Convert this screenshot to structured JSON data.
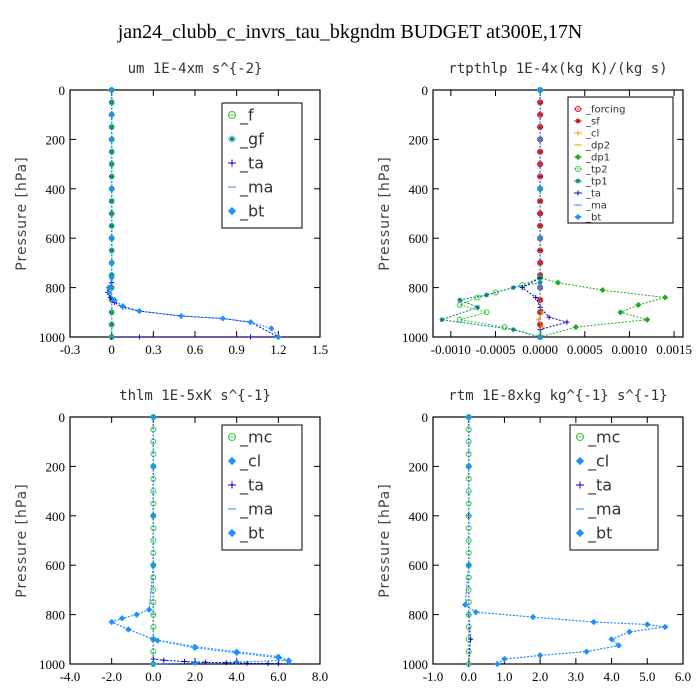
{
  "figure_title": "jan24_clubb_c_invrs_tau_bkgndm  BUDGET at300E,17N",
  "chart_data": [
    {
      "type": "line",
      "title": "um  1E-4xm s^{-2}",
      "ylabel": "Pressure [hPa]",
      "xlim": [
        -0.3,
        1.5
      ],
      "ylim": [
        1000,
        0
      ],
      "xticks": [
        "-0.3",
        "0",
        "0.3",
        "0.6",
        "0.9",
        "1.2",
        "1.5"
      ],
      "yticks": [
        "0",
        "200",
        "400",
        "600",
        "800",
        "1000"
      ],
      "legend_position": "top-right",
      "series": [
        {
          "name": "_f",
          "color": "#33cc33",
          "marker": "circle",
          "x": [
            0,
            0,
            0,
            0,
            0,
            0,
            0,
            0,
            0,
            0,
            0,
            0,
            0,
            0,
            0,
            0,
            0,
            0,
            0,
            0,
            0
          ],
          "y": [
            0,
            50,
            100,
            150,
            200,
            250,
            300,
            350,
            400,
            450,
            500,
            550,
            600,
            650,
            700,
            750,
            800,
            850,
            900,
            950,
            1000
          ]
        },
        {
          "name": "_gf",
          "color": "#008080",
          "marker": "star",
          "x": [
            0,
            0,
            0,
            0,
            0,
            0,
            0,
            0,
            0,
            0,
            0,
            0,
            0,
            0,
            0,
            0,
            0,
            0,
            0,
            0,
            0
          ],
          "y": [
            0,
            50,
            100,
            150,
            200,
            250,
            300,
            350,
            400,
            450,
            500,
            550,
            600,
            650,
            700,
            750,
            800,
            850,
            900,
            950,
            1000
          ]
        },
        {
          "name": "_ta",
          "color": "#0000cc",
          "marker": "plus",
          "x": [
            0,
            0,
            0,
            0,
            0,
            -0.02,
            -0.03,
            -0.01,
            0.02,
            0.08,
            0.2,
            0.5,
            0.8,
            1.0,
            1.2,
            1.0,
            0.2,
            0
          ],
          "y": [
            0,
            200,
            400,
            600,
            780,
            800,
            820,
            840,
            860,
            880,
            895,
            915,
            925,
            940,
            1000,
            1000,
            1000,
            1000
          ]
        },
        {
          "name": "_ma",
          "color": "#5599dd",
          "marker": "dash",
          "x": [
            0,
            0,
            0,
            0
          ],
          "y": [
            0,
            400,
            800,
            1000
          ]
        },
        {
          "name": "_bt",
          "color": "#1e90ff",
          "marker": "diamond",
          "x": [
            0,
            0,
            0,
            0,
            0,
            0,
            0,
            -0.02,
            -0.02,
            0.02,
            0.08,
            0.2,
            0.5,
            0.8,
            1.0,
            1.15,
            1.2
          ],
          "y": [
            0,
            100,
            200,
            400,
            600,
            700,
            760,
            800,
            820,
            850,
            875,
            895,
            915,
            925,
            940,
            965,
            1000
          ]
        }
      ]
    },
    {
      "type": "line",
      "title": "rtpthlp  1E-4x(kg K)/(kg s)",
      "ylabel": "Pressure [hPa]",
      "xlim": [
        -0.0012,
        0.0016
      ],
      "ylim": [
        1000,
        0
      ],
      "xticks": [
        "-0.0010",
        "-0.0005",
        "0.0000",
        "0.0005",
        "0.0010",
        "0.0015"
      ],
      "xtick_values": [
        -0.001,
        -0.0005,
        0,
        0.0005,
        0.001,
        0.0015
      ],
      "yticks": [
        "0",
        "200",
        "400",
        "600",
        "800",
        "1000"
      ],
      "legend_position": "top-right",
      "series": [
        {
          "name": "_forcing",
          "color": "#ff0000",
          "marker": "circle",
          "x": [
            0,
            0,
            0,
            0,
            0,
            0,
            0,
            0,
            0,
            0,
            0,
            0,
            0,
            0,
            0,
            0,
            0,
            0,
            0,
            0,
            0
          ],
          "y": [
            0,
            50,
            100,
            150,
            200,
            250,
            300,
            350,
            400,
            450,
            500,
            550,
            600,
            650,
            700,
            750,
            800,
            850,
            900,
            950,
            1000
          ]
        },
        {
          "name": "_sf",
          "color": "#cc0000",
          "marker": "star",
          "x": [
            0,
            0,
            0,
            0,
            0,
            0,
            0,
            0,
            0,
            0,
            0,
            0,
            0,
            0,
            0,
            0,
            0,
            0,
            0,
            0,
            0
          ],
          "y": [
            0,
            50,
            100,
            150,
            200,
            250,
            300,
            350,
            400,
            450,
            500,
            550,
            600,
            650,
            700,
            750,
            800,
            850,
            900,
            950,
            1000
          ]
        },
        {
          "name": "_cl",
          "color": "#ff9900",
          "marker": "plus",
          "x": [
            0,
            0,
            0,
            0,
            3e-05,
            -2e-05,
            3e-05,
            0
          ],
          "y": [
            0,
            400,
            800,
            880,
            900,
            930,
            960,
            1000
          ]
        },
        {
          "name": "_dp2",
          "color": "#cccc00",
          "marker": "dash",
          "x": [
            0,
            0,
            0,
            0
          ],
          "y": [
            0,
            400,
            800,
            1000
          ]
        },
        {
          "name": "_dp1",
          "color": "#22aa22",
          "marker": "diamond",
          "x": [
            0,
            0,
            0,
            0,
            0.0002,
            0.0007,
            0.0014,
            0.0011,
            0.0009,
            0.0012,
            0.0004,
            0
          ],
          "y": [
            0,
            400,
            600,
            760,
            780,
            810,
            840,
            870,
            900,
            930,
            960,
            1000
          ]
        },
        {
          "name": "_tp2",
          "color": "#33cc33",
          "marker": "circle",
          "x": [
            0,
            0,
            0,
            -0.0002,
            -0.0005,
            -0.0007,
            -0.0009,
            -0.0006,
            -0.0009,
            -0.0004,
            0
          ],
          "y": [
            0,
            400,
            760,
            790,
            820,
            840,
            870,
            900,
            930,
            960,
            1000
          ]
        },
        {
          "name": "_tp1",
          "color": "#008080",
          "marker": "star",
          "x": [
            0,
            0,
            0,
            -0.0003,
            -0.0006,
            -0.0009,
            -0.0007,
            -0.0011,
            -0.0003,
            0
          ],
          "y": [
            0,
            400,
            780,
            800,
            830,
            850,
            880,
            930,
            970,
            1000
          ]
        },
        {
          "name": "_ta",
          "color": "#0000cc",
          "marker": "plus",
          "x": [
            0,
            0,
            0,
            -0.0002,
            -5e-05,
            0,
            0.0001,
            0.0003,
            0,
            0
          ],
          "y": [
            0,
            400,
            760,
            800,
            840,
            880,
            920,
            940,
            970,
            1000
          ]
        },
        {
          "name": "_ma",
          "color": "#5599dd",
          "marker": "dash",
          "x": [
            0,
            0,
            0,
            0
          ],
          "y": [
            0,
            400,
            800,
            1000
          ]
        },
        {
          "name": "_bt",
          "color": "#1e90ff",
          "marker": "diamond",
          "x": [
            0,
            0,
            0,
            0,
            0,
            0
          ],
          "y": [
            0,
            200,
            400,
            600,
            800,
            1000
          ]
        }
      ]
    },
    {
      "type": "line",
      "title": "thlm  1E-5xK s^{-1}",
      "ylabel": "Pressure [hPa]",
      "xlim": [
        -4,
        8
      ],
      "ylim": [
        1000,
        0
      ],
      "xticks": [
        "-4.0",
        "-2.0",
        "0.0",
        "2.0",
        "4.0",
        "6.0",
        "8.0"
      ],
      "yticks": [
        "0",
        "200",
        "400",
        "600",
        "800",
        "1000"
      ],
      "legend_position": "top-right",
      "series": [
        {
          "name": "_mc",
          "color": "#33cc33",
          "marker": "circle",
          "x": [
            0,
            0,
            0,
            0,
            0,
            0,
            0,
            0,
            0,
            0,
            0,
            0,
            0,
            0,
            0,
            0,
            0,
            0,
            0,
            0,
            0
          ],
          "y": [
            0,
            50,
            100,
            150,
            200,
            250,
            300,
            350,
            400,
            450,
            500,
            550,
            600,
            650,
            700,
            750,
            800,
            850,
            900,
            950,
            1000
          ]
        },
        {
          "name": "_cl",
          "color": "#1e90ff",
          "marker": "diamond",
          "x": [
            0,
            0,
            0,
            0,
            -0.2,
            -0.8,
            -1.5,
            -2.0,
            -1.2,
            0,
            2,
            4,
            6,
            6.5,
            4,
            2,
            0
          ],
          "y": [
            0,
            200,
            400,
            600,
            780,
            800,
            815,
            830,
            860,
            900,
            930,
            950,
            970,
            985,
            992,
            996,
            1000
          ]
        },
        {
          "name": "_ta",
          "color": "#0000cc",
          "marker": "plus",
          "x": [
            0,
            0,
            0,
            0.5,
            1.5,
            2.5,
            3.5,
            4.5,
            5.5,
            6.0
          ],
          "y": [
            0,
            600,
            980,
            985,
            990,
            993,
            995,
            997,
            998,
            999
          ]
        },
        {
          "name": "_ma",
          "color": "#5599dd",
          "marker": "dash",
          "x": [
            0,
            0,
            0,
            0
          ],
          "y": [
            0,
            400,
            800,
            1000
          ]
        },
        {
          "name": "_bt",
          "color": "#1e90ff",
          "marker": "diamond",
          "x": [
            0,
            0,
            0,
            0,
            -0.2,
            -0.8,
            -1.5,
            -2.0,
            -1.2,
            0.2,
            2,
            4,
            6,
            6.5
          ],
          "y": [
            0,
            200,
            400,
            600,
            780,
            800,
            815,
            830,
            860,
            905,
            935,
            955,
            975,
            990
          ]
        }
      ]
    },
    {
      "type": "line",
      "title": "rtm  1E-8xkg kg^{-1} s^{-1}",
      "ylabel": "Pressure [hPa]",
      "xlim": [
        -1,
        6
      ],
      "ylim": [
        1000,
        0
      ],
      "xticks": [
        "-1.0",
        "0.0",
        "1.0",
        "2.0",
        "3.0",
        "4.0",
        "5.0",
        "6.0"
      ],
      "yticks": [
        "0",
        "200",
        "400",
        "600",
        "800",
        "1000"
      ],
      "legend_position": "top-right",
      "series": [
        {
          "name": "_mc",
          "color": "#33cc33",
          "marker": "circle",
          "x": [
            0,
            0,
            0,
            0,
            0,
            0,
            0,
            0,
            0,
            0,
            0,
            0,
            0,
            0,
            0,
            0,
            0,
            0,
            0,
            0,
            0
          ],
          "y": [
            0,
            50,
            100,
            150,
            200,
            250,
            300,
            350,
            400,
            450,
            500,
            550,
            600,
            650,
            700,
            750,
            800,
            850,
            900,
            950,
            1000
          ]
        },
        {
          "name": "_cl",
          "color": "#1e90ff",
          "marker": "diamond",
          "x": [
            0,
            0,
            0,
            -0.1,
            0.2,
            1.8,
            3.5,
            5.0,
            5.5,
            4.5,
            4.0,
            4.2,
            3.3,
            2.0,
            1.0,
            0.8
          ],
          "y": [
            0,
            200,
            600,
            760,
            790,
            810,
            830,
            840,
            850,
            870,
            900,
            925,
            950,
            965,
            980,
            1000
          ]
        },
        {
          "name": "_ta",
          "color": "#0000cc",
          "marker": "plus",
          "x": [
            0,
            0,
            0,
            0.05,
            0
          ],
          "y": [
            0,
            400,
            800,
            900,
            1000
          ]
        },
        {
          "name": "_ma",
          "color": "#5599dd",
          "marker": "dash",
          "x": [
            0,
            0,
            0,
            0
          ],
          "y": [
            0,
            400,
            800,
            1000
          ]
        },
        {
          "name": "_bt",
          "color": "#1e90ff",
          "marker": "diamond",
          "x": [
            0,
            0,
            0,
            -0.1,
            0.2,
            1.8,
            3.5,
            5.0,
            5.5,
            4.5,
            4.0,
            4.2,
            3.3,
            2.0,
            1.0,
            0.8
          ],
          "y": [
            0,
            200,
            600,
            760,
            790,
            810,
            830,
            840,
            850,
            870,
            900,
            925,
            950,
            965,
            980,
            1000
          ]
        }
      ]
    }
  ]
}
